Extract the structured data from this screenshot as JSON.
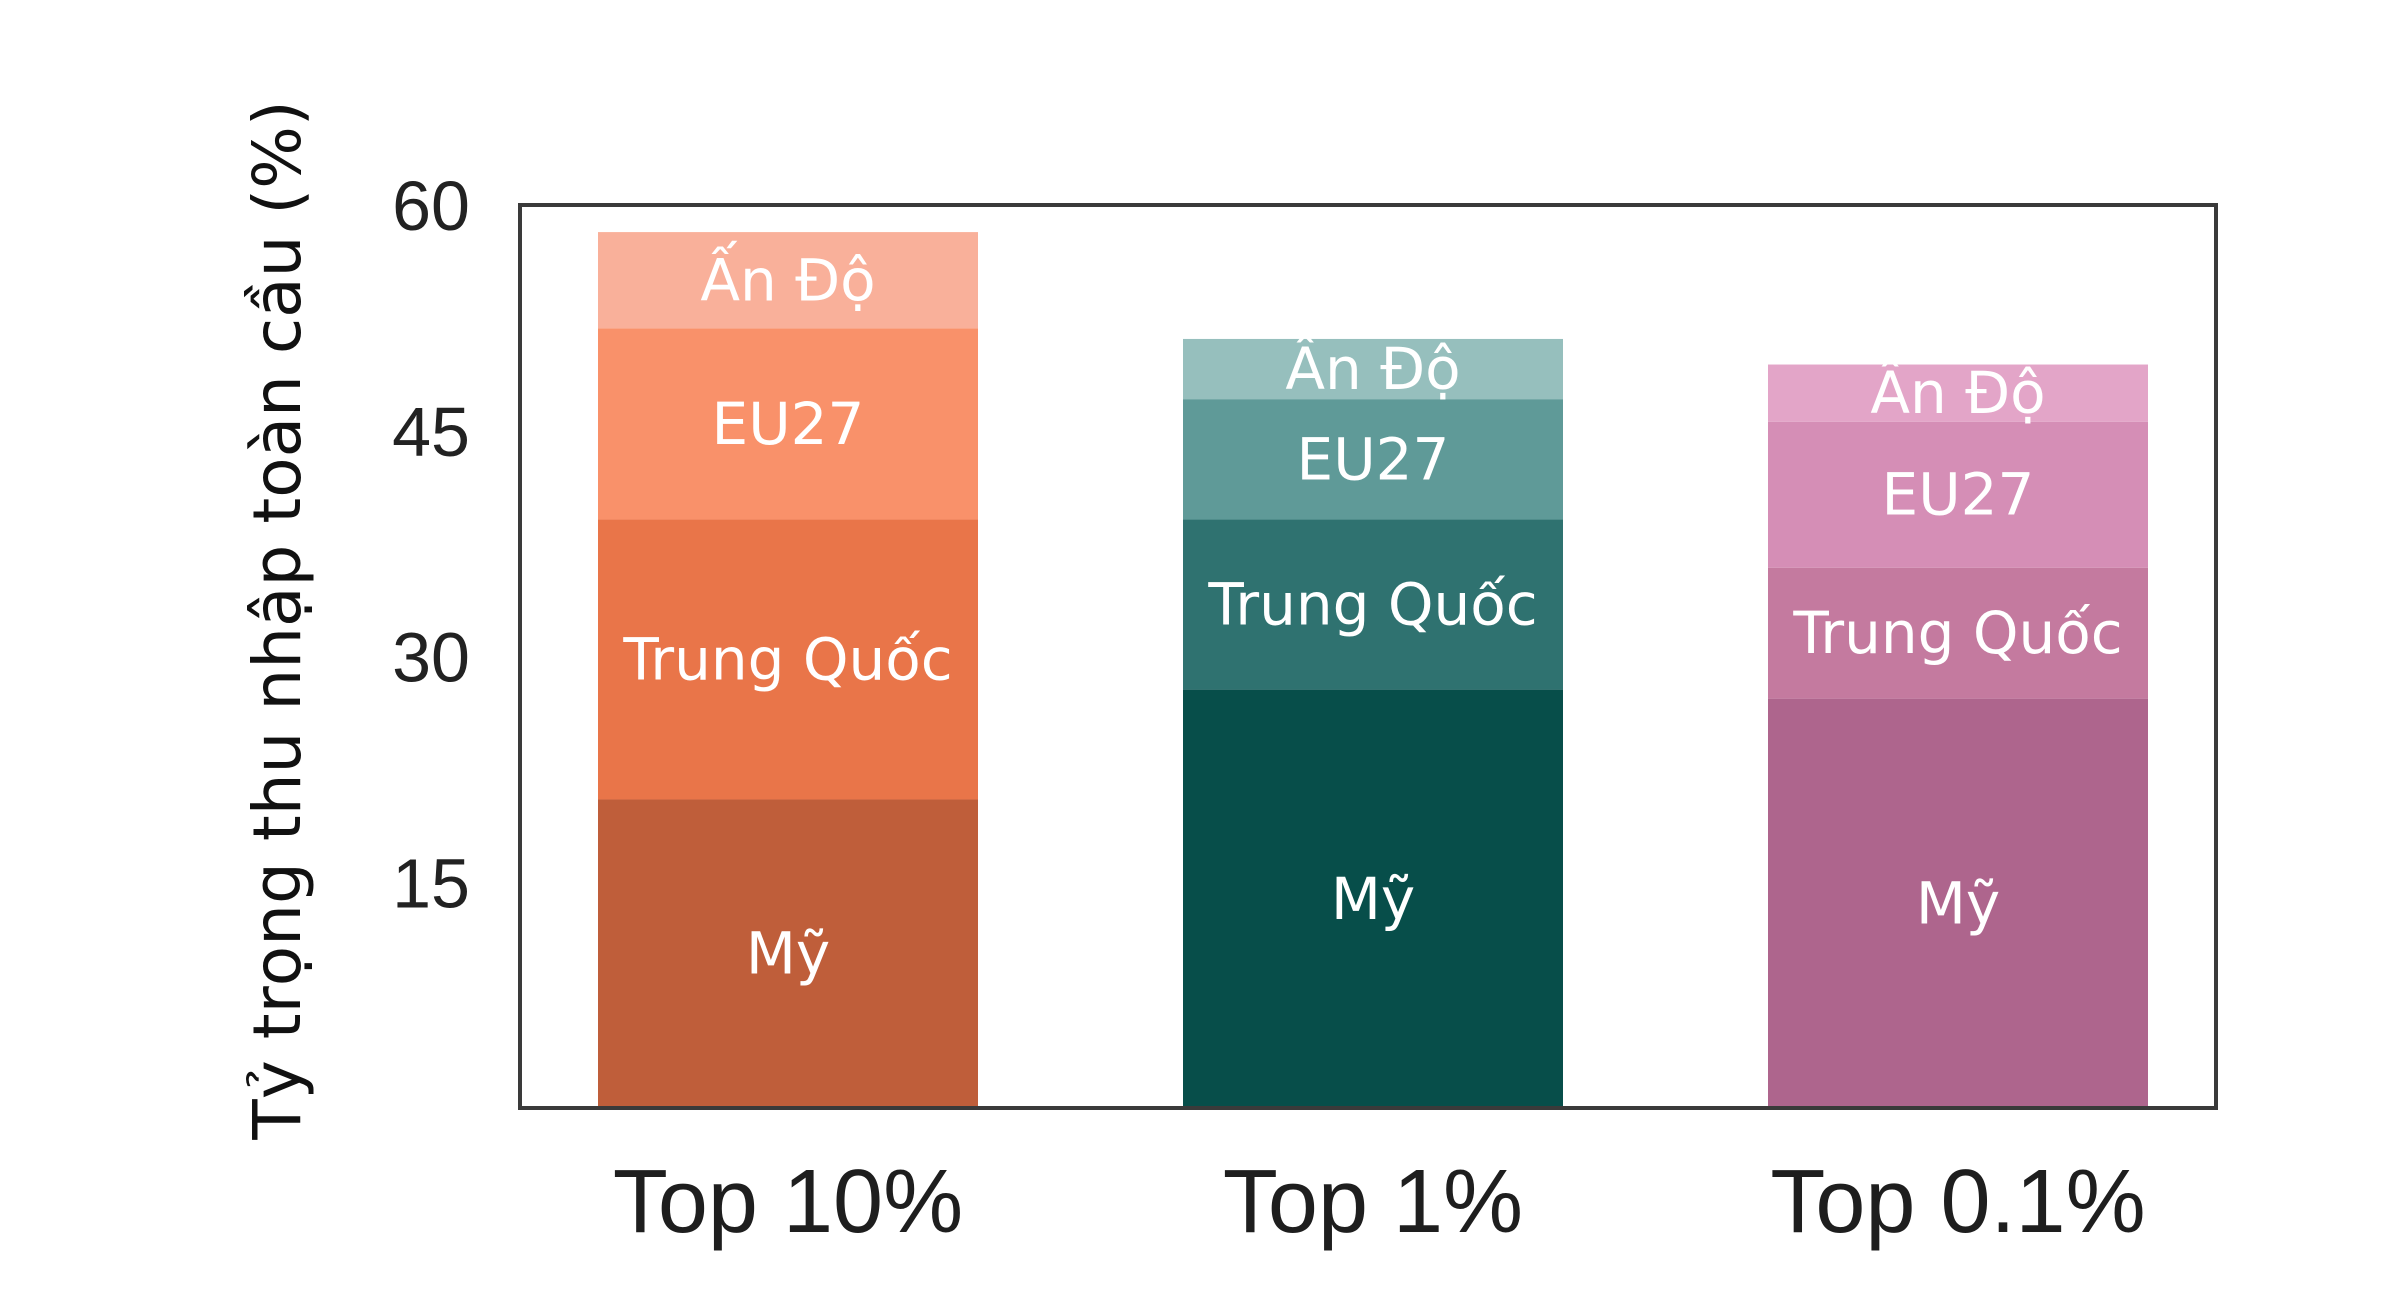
{
  "chart_data": {
    "type": "bar",
    "stacked": true,
    "ylabel": "Tỷ trọng thu nhập toàn cầu (%)",
    "xlabel": "",
    "ylim": [
      0,
      60
    ],
    "yticks": [
      "15",
      "30",
      "45",
      "60"
    ],
    "grid": false,
    "categories": [
      "Top 10%",
      "Top 1%",
      "Top 0.1%"
    ],
    "series": [
      {
        "name": "Mỹ",
        "values": [
          20.5,
          27.8,
          27.2
        ]
      },
      {
        "name": "Trung Quốc",
        "values": [
          18.6,
          11.3,
          8.7
        ]
      },
      {
        "name": "EU27",
        "values": [
          12.7,
          8.0,
          9.7
        ]
      },
      {
        "name": "Ấn Độ",
        "values": [
          6.4,
          4.0,
          3.8
        ]
      }
    ],
    "colors": [
      [
        "#bf5e3a",
        "#e97549",
        "#f9916a",
        "#f9b09a"
      ],
      [
        "#074e4a",
        "#2f7270",
        "#5f9a98",
        "#96bfbd"
      ],
      [
        "#ae658d",
        "#c47a9f",
        "#d58eb6",
        "#e3a5c8"
      ]
    ]
  }
}
